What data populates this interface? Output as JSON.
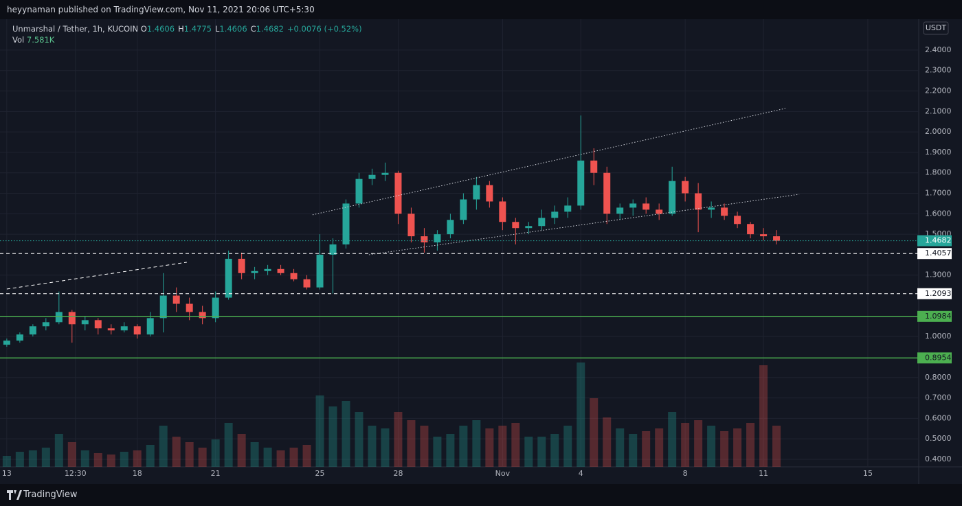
{
  "header": {
    "publisher": "heyynaman published on TradingView.com, Nov 11, 2021 20:06 UTC+5:30",
    "brand": "TradingView"
  },
  "chart_data": {
    "type": "candlestick",
    "title": "Unmarshal / Tether, 1h, KUCOIN",
    "ohlc": [
      {
        "label": "O",
        "value": 1.4606
      },
      {
        "label": "H",
        "value": 1.4775
      },
      {
        "label": "L",
        "value": 1.4606
      },
      {
        "label": "C",
        "value": 1.4682
      }
    ],
    "change": "+0.0076 (+0.52%)",
    "volume_name": "Vol",
    "volume_last": "7.581K",
    "currency": "USDT",
    "up_color": "#26a69a",
    "down_color": "#ef5350",
    "grid": true,
    "x": [
      0,
      0.5,
      1,
      1.5,
      2,
      2.5,
      3,
      3.5,
      4,
      4.5,
      5,
      5.5,
      6,
      6.5,
      7,
      7.5,
      8,
      8.5,
      9,
      9.5,
      10,
      10.5,
      11,
      11.5,
      12,
      12.5,
      13,
      13.5,
      14,
      14.5,
      15,
      15.5,
      16,
      16.5,
      17,
      17.5,
      18,
      18.5,
      19,
      19.5,
      20,
      20.5,
      21,
      21.5,
      22,
      22.5,
      23,
      23.5,
      24,
      24.5,
      25,
      25.5,
      26,
      26.5,
      27,
      27.5,
      28,
      28.5,
      29,
      29.5
    ],
    "open": [
      0.96,
      0.98,
      1.01,
      1.05,
      1.07,
      1.12,
      1.06,
      1.08,
      1.04,
      1.03,
      1.05,
      1.01,
      1.09,
      1.2,
      1.16,
      1.12,
      1.09,
      1.19,
      1.38,
      1.31,
      1.32,
      1.33,
      1.31,
      1.28,
      1.24,
      1.4,
      1.45,
      1.65,
      1.77,
      1.79,
      1.8,
      1.6,
      1.49,
      1.46,
      1.5,
      1.57,
      1.67,
      1.74,
      1.66,
      1.56,
      1.53,
      1.54,
      1.58,
      1.61,
      1.64,
      1.86,
      1.8,
      1.6,
      1.63,
      1.65,
      1.62,
      1.6,
      1.76,
      1.7,
      1.62,
      1.63,
      1.59,
      1.55,
      1.5,
      1.49
    ],
    "high": [
      0.99,
      1.02,
      1.06,
      1.09,
      1.22,
      1.13,
      1.1,
      1.09,
      1.06,
      1.07,
      1.06,
      1.12,
      1.31,
      1.24,
      1.19,
      1.15,
      1.22,
      1.42,
      1.41,
      1.34,
      1.35,
      1.35,
      1.33,
      1.3,
      1.5,
      1.48,
      1.67,
      1.8,
      1.82,
      1.85,
      1.81,
      1.63,
      1.53,
      1.52,
      1.6,
      1.7,
      1.78,
      1.76,
      1.68,
      1.58,
      1.56,
      1.62,
      1.64,
      1.68,
      2.08,
      1.92,
      1.83,
      1.65,
      1.67,
      1.68,
      1.65,
      1.83,
      1.78,
      1.75,
      1.66,
      1.65,
      1.61,
      1.56,
      1.53,
      1.52
    ],
    "low": [
      0.95,
      0.97,
      1.0,
      1.03,
      1.06,
      0.97,
      1.03,
      1.01,
      1.01,
      1.02,
      0.99,
      1.0,
      1.02,
      1.12,
      1.08,
      1.06,
      1.07,
      1.18,
      1.28,
      1.28,
      1.3,
      1.3,
      1.27,
      1.23,
      1.23,
      1.21,
      1.43,
      1.63,
      1.74,
      1.76,
      1.55,
      1.46,
      1.41,
      1.42,
      1.48,
      1.55,
      1.62,
      1.63,
      1.52,
      1.45,
      1.5,
      1.52,
      1.55,
      1.58,
      1.62,
      1.74,
      1.55,
      1.57,
      1.59,
      1.6,
      1.57,
      1.59,
      1.66,
      1.51,
      1.58,
      1.57,
      1.53,
      1.48,
      1.47,
      1.45
    ],
    "close": [
      0.98,
      1.01,
      1.05,
      1.07,
      1.12,
      1.06,
      1.08,
      1.04,
      1.03,
      1.05,
      1.01,
      1.09,
      1.2,
      1.16,
      1.12,
      1.09,
      1.19,
      1.38,
      1.31,
      1.32,
      1.33,
      1.31,
      1.28,
      1.24,
      1.4,
      1.45,
      1.65,
      1.77,
      1.79,
      1.8,
      1.6,
      1.49,
      1.46,
      1.5,
      1.57,
      1.67,
      1.74,
      1.66,
      1.56,
      1.53,
      1.54,
      1.58,
      1.61,
      1.64,
      1.86,
      1.8,
      1.6,
      1.63,
      1.65,
      1.62,
      1.6,
      1.76,
      1.7,
      1.62,
      1.63,
      1.59,
      1.55,
      1.5,
      1.49,
      1.4682
    ],
    "volume": [
      40,
      55,
      60,
      70,
      120,
      90,
      60,
      50,
      45,
      55,
      60,
      80,
      150,
      110,
      90,
      70,
      100,
      160,
      120,
      90,
      70,
      60,
      70,
      80,
      260,
      220,
      240,
      200,
      150,
      140,
      200,
      170,
      150,
      110,
      120,
      150,
      170,
      140,
      150,
      160,
      110,
      110,
      120,
      150,
      380,
      250,
      180,
      140,
      120,
      130,
      140,
      200,
      160,
      170,
      150,
      130,
      140,
      160,
      370,
      150
    ],
    "volume_ylim": [
      0,
      400
    ],
    "xlim": [
      -0.26,
      34.95
    ],
    "xticks": [
      {
        "value": 0,
        "label": "13"
      },
      {
        "value": 2.63,
        "label": "12:30"
      },
      {
        "value": 5,
        "label": "18"
      },
      {
        "value": 8,
        "label": "21"
      },
      {
        "value": 12,
        "label": "25"
      },
      {
        "value": 15,
        "label": "28"
      },
      {
        "value": 19,
        "label": "Nov"
      },
      {
        "value": 22,
        "label": "4"
      },
      {
        "value": 26,
        "label": "8"
      },
      {
        "value": 29,
        "label": "11"
      },
      {
        "value": 33,
        "label": "15"
      }
    ],
    "ylim": [
      0.363,
      2.544
    ],
    "yticks": [
      {
        "value": 2.4,
        "label": "2.4000"
      },
      {
        "value": 2.3,
        "label": "2.3000"
      },
      {
        "value": 2.2,
        "label": "2.2000"
      },
      {
        "value": 2.1,
        "label": "2.1000"
      },
      {
        "value": 2.0,
        "label": "2.0000"
      },
      {
        "value": 1.9,
        "label": "1.9000"
      },
      {
        "value": 1.8,
        "label": "1.8000"
      },
      {
        "value": 1.7,
        "label": "1.7000"
      },
      {
        "value": 1.6,
        "label": "1.6000"
      },
      {
        "value": 1.5,
        "label": "1.5000"
      },
      {
        "value": 1.3,
        "label": "1.3000"
      },
      {
        "value": 1.0,
        "label": "1.0000"
      },
      {
        "value": 0.8,
        "label": "0.8000"
      },
      {
        "value": 0.7,
        "label": "0.7000"
      },
      {
        "value": 0.6,
        "label": "0.6000"
      },
      {
        "value": 0.5,
        "label": "0.5000"
      },
      {
        "value": 0.4,
        "label": "0.4000"
      }
    ],
    "levels": [
      {
        "value": 1.4682,
        "color": "#26a69a",
        "style": "dotted",
        "text_color": "#ffffff"
      },
      {
        "value": 1.4057,
        "color": "#ffffff",
        "style": "dashed",
        "text_color": "#131722"
      },
      {
        "value": 1.2093,
        "color": "#ffffff",
        "style": "dashed",
        "text_color": "#131722"
      },
      {
        "value": 1.0984,
        "color": "#4caf50",
        "style": "solid",
        "text_color": "#131722"
      },
      {
        "value": 0.8954,
        "color": "#4caf50",
        "style": "solid",
        "text_color": "#131722"
      }
    ],
    "trendlines": [
      {
        "x": [
          11.72,
          29.84
        ],
        "y": [
          1.595,
          2.115
        ],
        "color": "#d1d4dc",
        "style": "dotted"
      },
      {
        "x": [
          13.88,
          30.37
        ],
        "y": [
          1.4,
          1.695
        ],
        "color": "#d1d4dc",
        "style": "dotted"
      },
      {
        "x": [
          0,
          6.9
        ],
        "y": [
          1.232,
          1.363
        ],
        "color": "#ffffff",
        "style": "dashed"
      }
    ]
  }
}
